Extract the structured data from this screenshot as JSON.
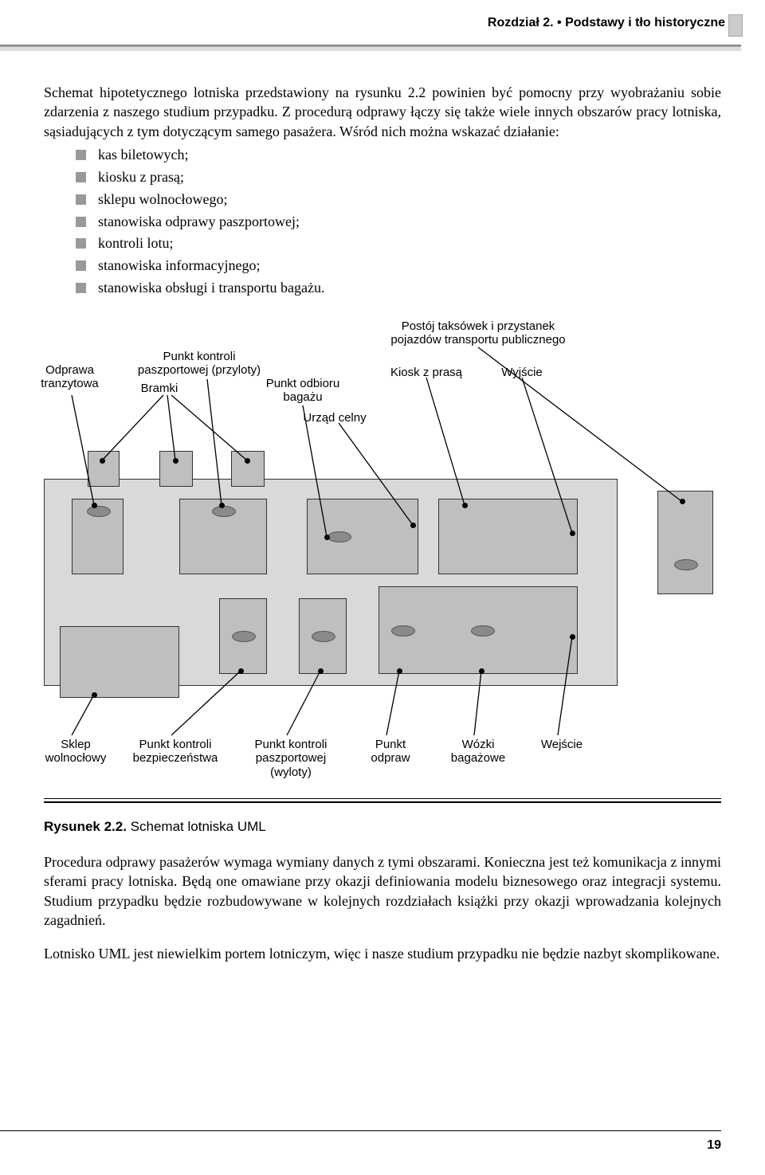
{
  "header": {
    "text": "Rozdział 2. • Podstawy i tło historyczne"
  },
  "intro_para": "Schemat hipotetycznego lotniska przedstawiony na rysunku 2.2 powinien być pomocny przy wyobrażaniu sobie zdarzenia z naszego studium przypadku. Z procedurą odprawy łączy się także wiele innych obszarów pracy lotniska, sąsiadujących z tym dotyczącym samego pasażera. Wśród nich można wskazać działanie:",
  "bullets": [
    "kas biletowych;",
    "kiosku z prasą;",
    "sklepu wolnocłowego;",
    "stanowiska odprawy paszportowej;",
    "kontroli lotu;",
    "stanowiska informacyjnego;",
    "stanowiska obsługi i transportu bagażu."
  ],
  "diagram": {
    "top_labels": {
      "odprawa": "Odprawa\ntranzytowa",
      "punkt_kontroli_przyloty": "Punkt kontroli\npaszportowej (przyloty)",
      "bramki": "Bramki",
      "punkt_odbioru": "Punkt odbioru\nbagażu",
      "urzad_celny": "Urząd celny",
      "postoj": "Postój taksówek i przystanek\npojazdów transportu publicznego",
      "kiosk": "Kiosk z prasą",
      "wyjscie": "Wyjście"
    },
    "bottom_labels": {
      "sklep": "Sklep\nwolnocłowy",
      "punkt_bezp": "Punkt kontroli\nbezpieczeństwa",
      "punkt_wyloty": "Punkt kontroli\npaszportowej\n(wyloty)",
      "punkt_odpraw": "Punkt\nodpraw",
      "wozki": "Wózki\nbagażowe",
      "wejscie": "Wejście"
    },
    "colors": {
      "box": "#bfbfbf",
      "box_light": "#d9d9d9",
      "ellipse": "#8a8a8a",
      "line": "#000000"
    }
  },
  "caption": {
    "bold": "Rysunek 2.2.",
    "rest": " Schemat lotniska UML"
  },
  "para_after_1": "Procedura odprawy pasażerów wymaga wymiany danych z tymi obszarami. Konieczna jest też komunikacja z innymi sferami pracy lotniska. Będą one omawiane przy okazji definiowania modelu biznesowego oraz integracji systemu. Studium przypadku będzie rozbudowywane w kolejnych rozdziałach książki przy okazji wprowadzania kolejnych zagadnień.",
  "para_after_2": "Lotnisko UML jest niewielkim portem lotniczym, więc i nasze studium przypadku nie będzie nazbyt skomplikowane.",
  "page_number": "19"
}
